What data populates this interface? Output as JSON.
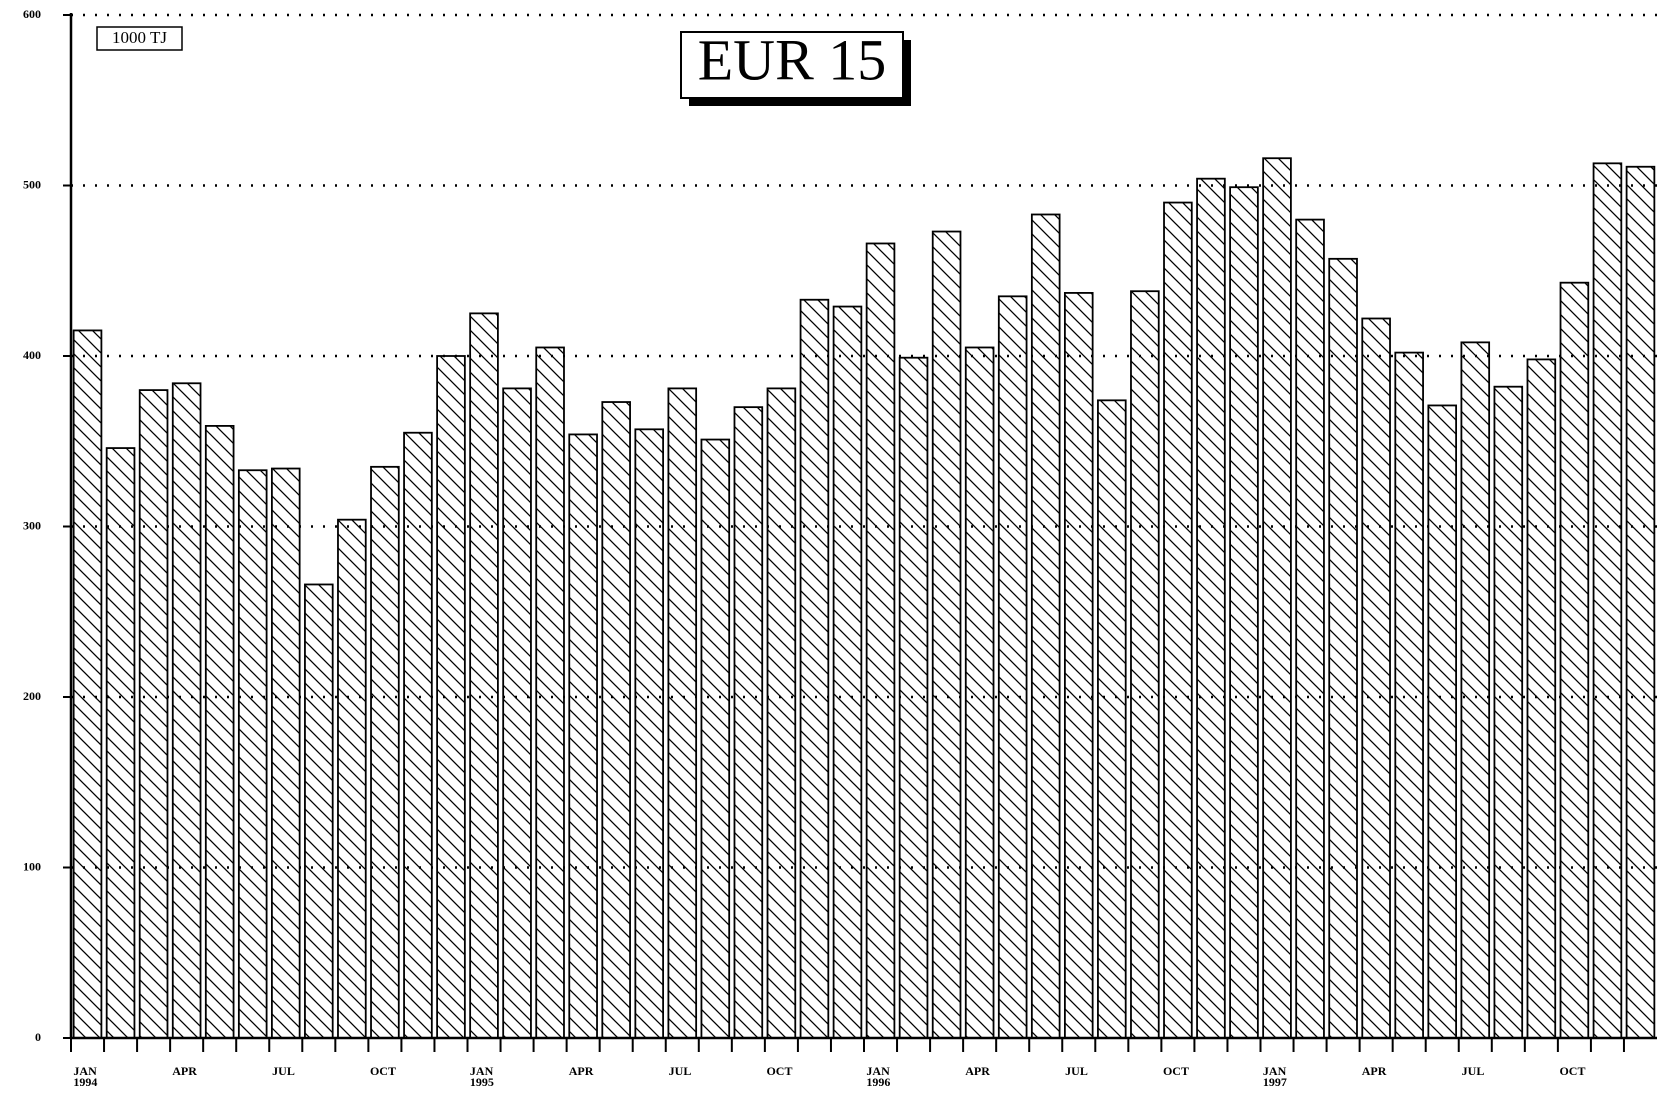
{
  "chart_data": {
    "type": "bar",
    "title": "EUR 15",
    "unit_label": "1000 TJ",
    "categories": [
      "JAN\n1994",
      null,
      null,
      "APR",
      null,
      null,
      "JUL",
      null,
      null,
      "OCT",
      null,
      null,
      "JAN\n1995",
      null,
      null,
      "APR",
      null,
      null,
      "JUL",
      null,
      null,
      "OCT",
      null,
      null,
      "JAN\n1996",
      null,
      null,
      "APR",
      null,
      null,
      "JUL",
      null,
      null,
      "OCT",
      null,
      null,
      "JAN\n1997",
      null,
      null,
      "APR",
      null,
      null,
      "JUL",
      null,
      null,
      "OCT",
      null,
      null
    ],
    "values": [
      415,
      346,
      380,
      384,
      359,
      333,
      334,
      266,
      304,
      335,
      355,
      400,
      425,
      381,
      405,
      354,
      373,
      357,
      381,
      351,
      370,
      381,
      433,
      429,
      466,
      399,
      473,
      405,
      435,
      483,
      437,
      374,
      438,
      490,
      504,
      499,
      516,
      480,
      457,
      422,
      402,
      371,
      408,
      382,
      398,
      443,
      513,
      511
    ],
    "ylim": [
      0,
      600
    ],
    "yticks": [
      0,
      100,
      200,
      300,
      400,
      500,
      600
    ],
    "grid": true,
    "color": "#000000"
  }
}
